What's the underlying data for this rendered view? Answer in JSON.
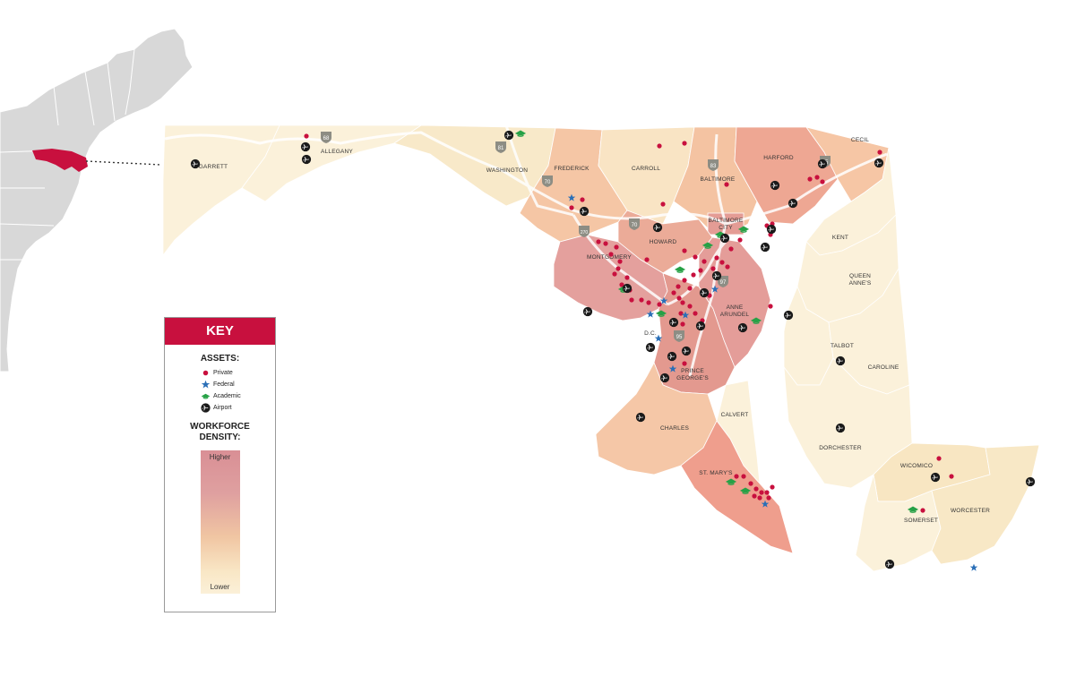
{
  "colors": {
    "private": "#c8103e",
    "federal": "#2a6fb7",
    "academic": "#26a146",
    "airport": "#1a1a1a",
    "highlight": "#c8103e",
    "higher": "#dd9a9a",
    "lower": "#fbf0d8"
  },
  "counties": {
    "garrett": "GARRETT",
    "allegany": "ALLEGANY",
    "washington": "WASHINGTON",
    "frederick": "FREDERICK",
    "carroll": "CARROLL",
    "baltimore": "BALTIMORE",
    "harford": "HARFORD",
    "cecil": "CECIL",
    "baltimore_city_1": "BALTIMORE",
    "baltimore_city_2": "CITY",
    "howard": "HOWARD",
    "montgomery": "MONTGOMERY",
    "anne_arundel_1": "ANNE",
    "anne_arundel_2": "ARUNDEL",
    "dc": "D.C.",
    "prince_georges_1": "PRINCE",
    "prince_georges_2": "GEORGE'S",
    "kent": "KENT",
    "queen_annes_1": "QUEEN",
    "queen_annes_2": "ANNE'S",
    "talbot": "TALBOT",
    "caroline": "CAROLINE",
    "calvert": "CALVERT",
    "charles": "CHARLES",
    "st_marys": "ST. MARY'S",
    "dorchester": "DORCHESTER",
    "wicomico": "WICOMICO",
    "somerset": "SOMERSET",
    "worcester": "WORCESTER"
  },
  "highways": [
    "68",
    "81",
    "70",
    "270",
    "70",
    "83",
    "95",
    "97",
    "95"
  ],
  "key": {
    "title": "KEY",
    "assets_heading": "ASSETS:",
    "legend": [
      {
        "label": "Private",
        "icon": "private-dot-icon"
      },
      {
        "label": "Federal",
        "icon": "federal-star-icon"
      },
      {
        "label": "Academic",
        "icon": "academic-cap-icon"
      },
      {
        "label": "Airport",
        "icon": "airport-plane-icon"
      }
    ],
    "density_heading_1": "WORKFORCE",
    "density_heading_2": "DENSITY:",
    "higher": "Higher",
    "lower": "Lower"
  }
}
